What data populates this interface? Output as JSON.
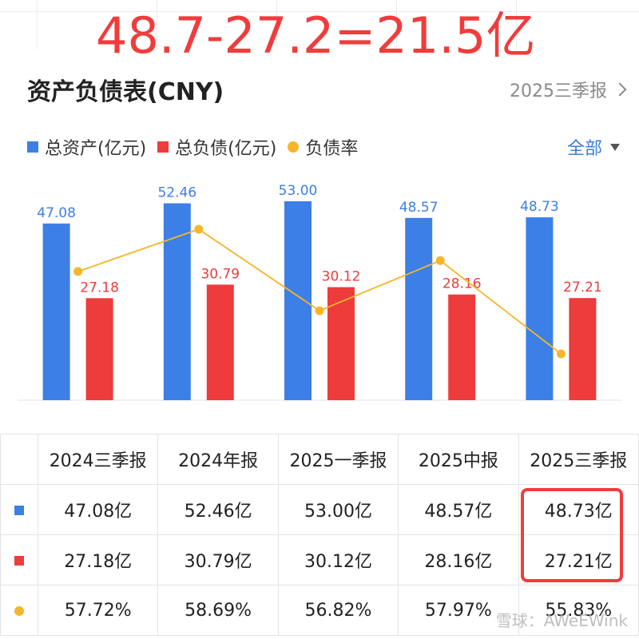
{
  "overlay_annotation": "48.7-27.2=21.5亿",
  "header": {
    "title": "资产负债表(CNY)",
    "period": "2025三季报"
  },
  "legend": {
    "items": [
      {
        "label": "总资产(亿元)",
        "color": "#3c7fe6"
      },
      {
        "label": "总负债(亿元)",
        "color": "#ee3b3b"
      },
      {
        "label": "负债率",
        "color": "#f5b62a"
      }
    ],
    "filter_label": "全部"
  },
  "chart_data": {
    "type": "bar",
    "categories": [
      "2024三季报",
      "2024年报",
      "2025一季报",
      "2025中报",
      "2025三季报"
    ],
    "series": [
      {
        "name": "总资产(亿元)",
        "type": "bar",
        "color": "#3c7fe6",
        "values": [
          47.08,
          52.46,
          53.0,
          48.57,
          48.73
        ],
        "labels": [
          "47.08",
          "52.46",
          "53.00",
          "48.57",
          "48.73"
        ]
      },
      {
        "name": "总负债(亿元)",
        "type": "bar",
        "color": "#ee3b3b",
        "values": [
          27.18,
          30.79,
          30.12,
          28.16,
          27.21
        ],
        "labels": [
          "27.18",
          "30.79",
          "30.12",
          "28.16",
          "27.21"
        ]
      },
      {
        "name": "负债率",
        "type": "line",
        "color": "#f5b62a",
        "values": [
          57.72,
          58.69,
          56.82,
          57.97,
          55.83
        ]
      }
    ],
    "ylim": [
      0,
      53.0
    ]
  },
  "table": {
    "headers": [
      "2024三季报",
      "2024年报",
      "2025一季报",
      "2025中报",
      "2025三季报"
    ],
    "rows": [
      {
        "marker": "square-blue",
        "color": "#3c7fe6",
        "cells": [
          "47.08亿",
          "52.46亿",
          "53.00亿",
          "48.57亿",
          "48.73亿"
        ]
      },
      {
        "marker": "square-red",
        "color": "#ee3b3b",
        "cells": [
          "27.18亿",
          "30.79亿",
          "30.12亿",
          "28.16亿",
          "27.21亿"
        ]
      },
      {
        "marker": "dot-yellow",
        "color": "#f5b62a",
        "cells": [
          "57.72%",
          "58.69%",
          "56.82%",
          "57.97%",
          "55.83%"
        ]
      }
    ]
  },
  "watermark": "雪球：AWeEWink"
}
